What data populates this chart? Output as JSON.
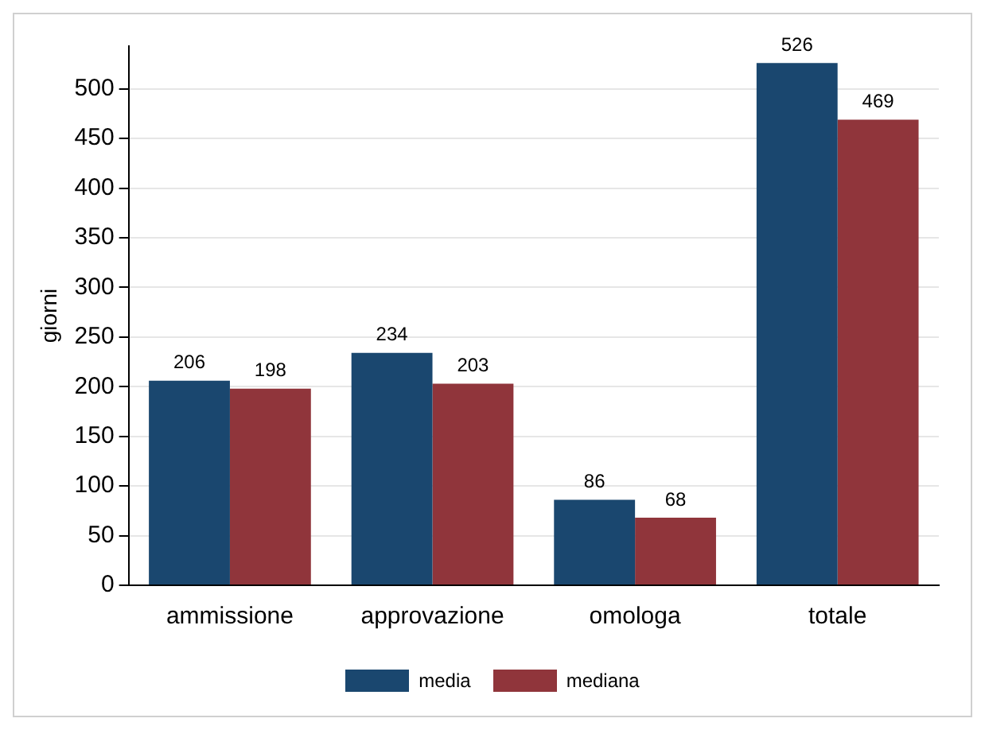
{
  "chart_data": {
    "type": "bar",
    "ylabel": "giorni",
    "categories": [
      "ammissione",
      "approvazione",
      "omologa",
      "totale"
    ],
    "series": [
      {
        "name": "media",
        "color": "#1a476f",
        "values": [
          206,
          234,
          86,
          526
        ]
      },
      {
        "name": "mediana",
        "color": "#90353b",
        "values": [
          198,
          203,
          68,
          469
        ]
      }
    ],
    "ylim": [
      0,
      543
    ],
    "yticks": [
      0,
      50,
      100,
      150,
      200,
      250,
      300,
      350,
      400,
      450,
      500
    ],
    "grid": "y",
    "legend": "bottom",
    "data_labels": true
  }
}
